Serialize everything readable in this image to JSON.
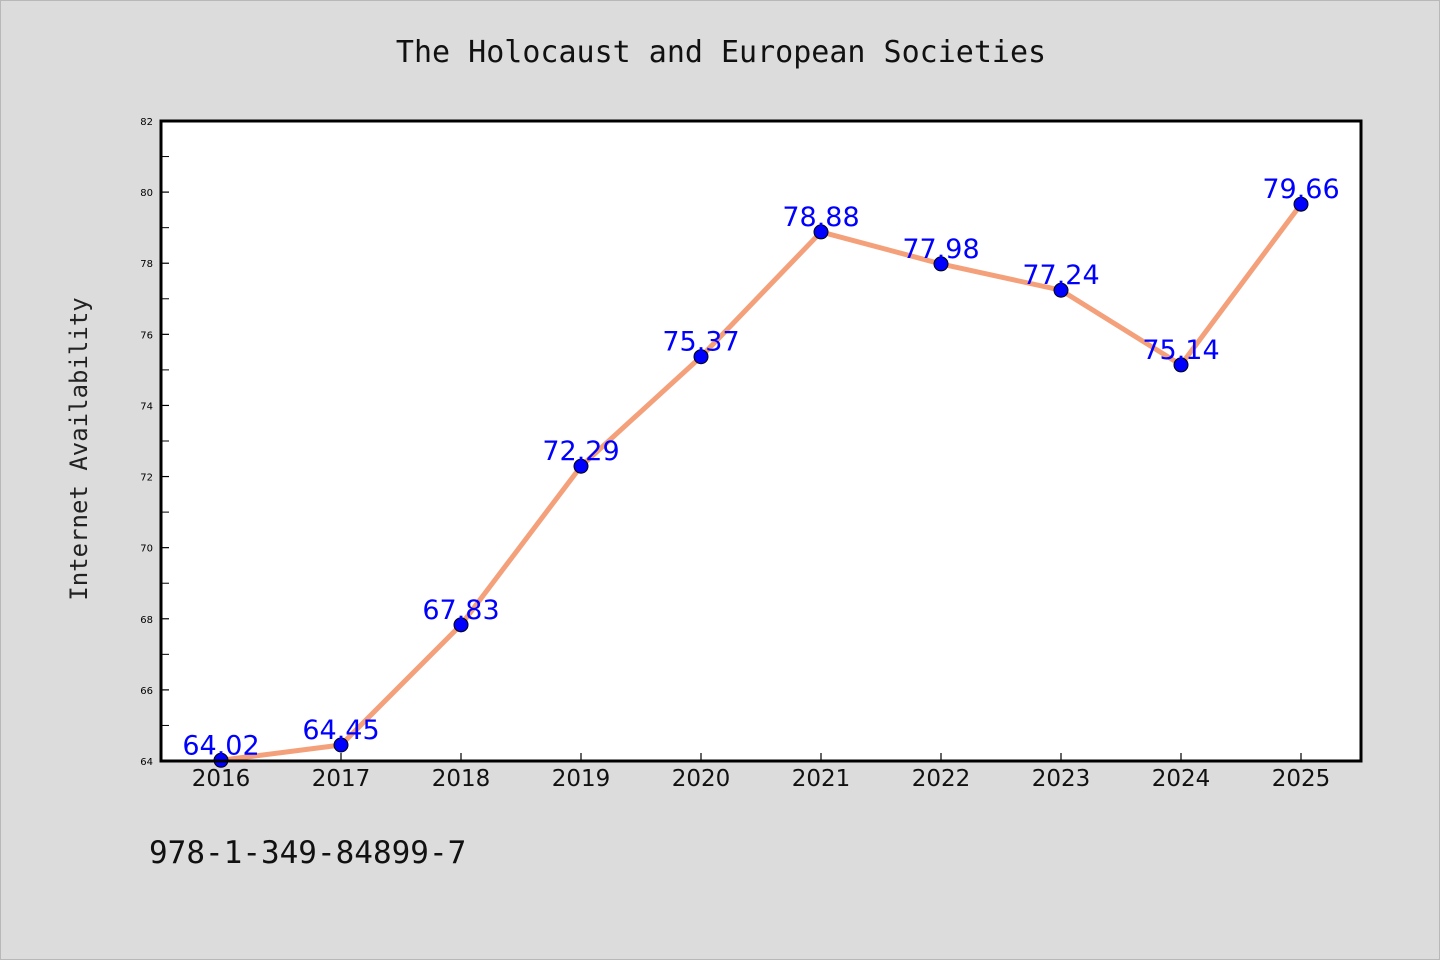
{
  "chart_data": {
    "type": "line",
    "title": "The Holocaust and European Societies",
    "xlabel": "",
    "ylabel": "Internet Availability",
    "x": [
      "2016",
      "2017",
      "2018",
      "2019",
      "2020",
      "2021",
      "2022",
      "2023",
      "2024",
      "2025"
    ],
    "series": [
      {
        "values": [
          64.02,
          64.45,
          67.83,
          72.29,
          75.37,
          78.88,
          77.98,
          77.24,
          75.14,
          79.66
        ],
        "labels": [
          "64.02",
          "64.45",
          "67.83",
          "72.29",
          "75.37",
          "78.88",
          "77.98",
          "77.24",
          "75.14",
          "79.66"
        ]
      }
    ],
    "ylim": [
      64,
      82
    ],
    "yticks": [
      64,
      66,
      68,
      70,
      72,
      74,
      76,
      78,
      80,
      82
    ],
    "yticklabels": [
      "64",
      "66",
      "68",
      "70",
      "72",
      "74",
      "76",
      "78",
      "80",
      "82"
    ],
    "grid": false,
    "colors": {
      "line": "#f4a07a",
      "marker": "#0000ff",
      "label": "#0000ff",
      "background": "#dcdcdc",
      "plot_background": "#ffffff"
    }
  },
  "footer": {
    "isbn": "978-1-349-84899-7"
  }
}
